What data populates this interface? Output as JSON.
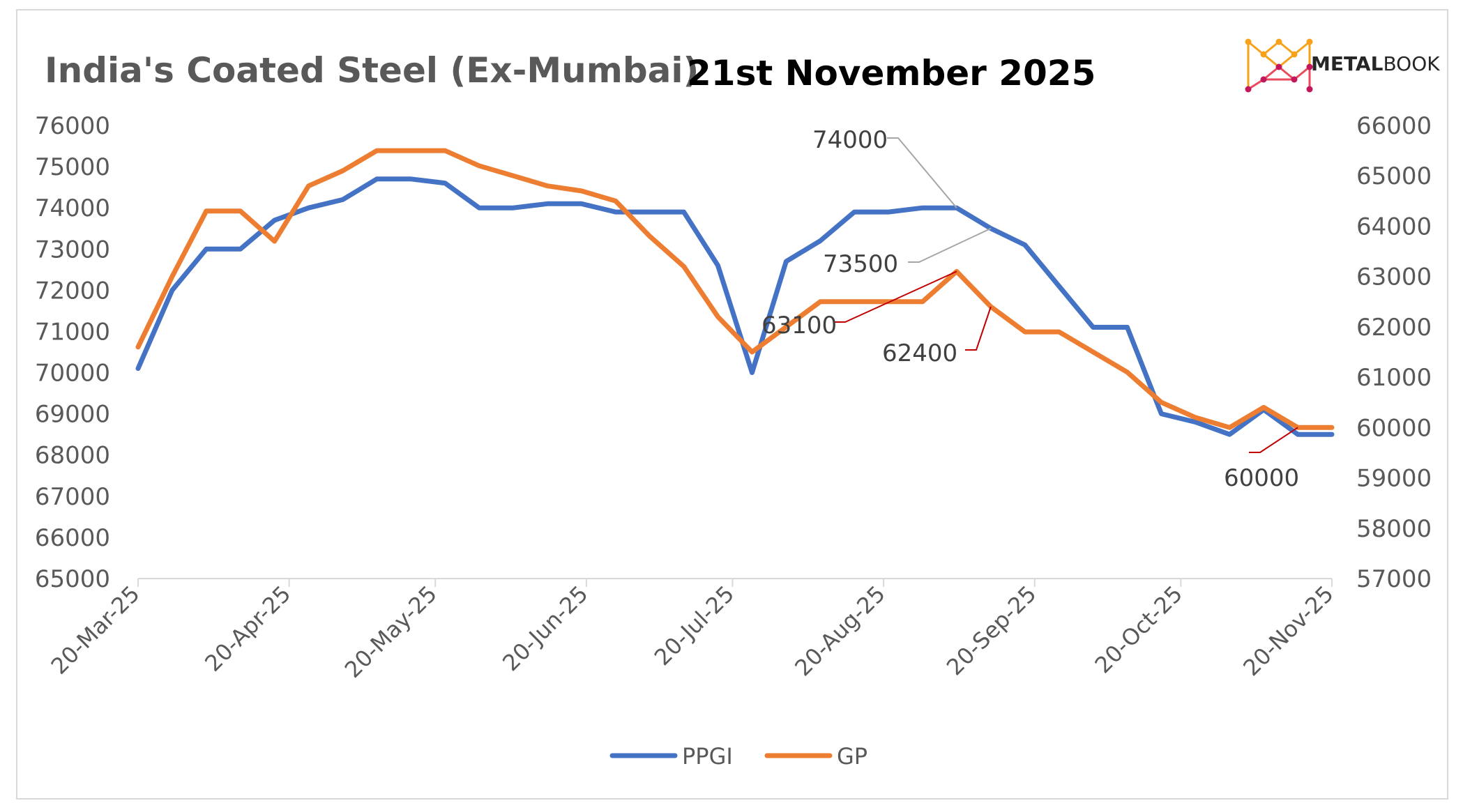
{
  "header": {
    "title": "India's Coated Steel (Ex-Mumbai)",
    "date": "21st November 2025"
  },
  "brand": {
    "name_bold": "METAL",
    "name_rest": "BOOK",
    "logo_icon": "metalbook-m-lattice-icon",
    "logo_colors": [
      "#f7a21b",
      "#e94b5c",
      "#c2185b"
    ]
  },
  "chart_data": {
    "type": "line",
    "title": "India's Coated Steel (Ex-Mumbai)",
    "subtitle": "21st November 2025",
    "xlabel": "",
    "ylabel": "",
    "x_tick_labels": [
      "20-Mar-25",
      "20-Apr-25",
      "20-May-25",
      "20-Jun-25",
      "20-Jul-25",
      "20-Aug-25",
      "20-Sep-25",
      "20-Oct-25",
      "20-Nov-25"
    ],
    "x_range": [
      "2025-03-20",
      "2025-11-20"
    ],
    "y_left": {
      "min": 65000,
      "max": 76000,
      "step": 1000,
      "series": "PPGI"
    },
    "y_right": {
      "min": 57000,
      "max": 66000,
      "step": 1000,
      "series": "GP"
    },
    "grid": false,
    "legend_position": "bottom",
    "series": [
      {
        "name": "PPGI",
        "axis": "left",
        "color": "#4472c4",
        "points": [
          [
            "2025-03-20",
            70100
          ],
          [
            "2025-03-27",
            72000
          ],
          [
            "2025-04-03",
            73000
          ],
          [
            "2025-04-10",
            73000
          ],
          [
            "2025-04-17",
            73700
          ],
          [
            "2025-04-24",
            74000
          ],
          [
            "2025-05-01",
            74200
          ],
          [
            "2025-05-08",
            74700
          ],
          [
            "2025-05-15",
            74700
          ],
          [
            "2025-05-22",
            74600
          ],
          [
            "2025-05-29",
            74000
          ],
          [
            "2025-06-05",
            74000
          ],
          [
            "2025-06-12",
            74100
          ],
          [
            "2025-06-19",
            74100
          ],
          [
            "2025-06-26",
            73900
          ],
          [
            "2025-07-03",
            73900
          ],
          [
            "2025-07-10",
            73900
          ],
          [
            "2025-07-17",
            72600
          ],
          [
            "2025-07-24",
            70000
          ],
          [
            "2025-07-31",
            72700
          ],
          [
            "2025-08-07",
            73200
          ],
          [
            "2025-08-14",
            73900
          ],
          [
            "2025-08-21",
            73900
          ],
          [
            "2025-08-28",
            74000
          ],
          [
            "2025-09-04",
            74000
          ],
          [
            "2025-09-11",
            73500
          ],
          [
            "2025-09-18",
            73100
          ],
          [
            "2025-09-25",
            72100
          ],
          [
            "2025-10-02",
            71100
          ],
          [
            "2025-10-09",
            71100
          ],
          [
            "2025-10-16",
            69000
          ],
          [
            "2025-10-23",
            68800
          ],
          [
            "2025-10-30",
            68500
          ],
          [
            "2025-11-06",
            69100
          ],
          [
            "2025-11-13",
            68500
          ],
          [
            "2025-11-20",
            68500
          ]
        ]
      },
      {
        "name": "GP",
        "axis": "right",
        "color": "#ed7d31",
        "points": [
          [
            "2025-03-20",
            61600
          ],
          [
            "2025-03-27",
            63000
          ],
          [
            "2025-04-03",
            64300
          ],
          [
            "2025-04-10",
            64300
          ],
          [
            "2025-04-17",
            63700
          ],
          [
            "2025-04-24",
            64800
          ],
          [
            "2025-05-01",
            65100
          ],
          [
            "2025-05-08",
            65500
          ],
          [
            "2025-05-15",
            65500
          ],
          [
            "2025-05-22",
            65500
          ],
          [
            "2025-05-29",
            65200
          ],
          [
            "2025-06-05",
            65000
          ],
          [
            "2025-06-12",
            64800
          ],
          [
            "2025-06-19",
            64700
          ],
          [
            "2025-06-26",
            64500
          ],
          [
            "2025-07-03",
            63800
          ],
          [
            "2025-07-10",
            63200
          ],
          [
            "2025-07-17",
            62200
          ],
          [
            "2025-07-24",
            61500
          ],
          [
            "2025-07-31",
            62000
          ],
          [
            "2025-08-07",
            62500
          ],
          [
            "2025-08-14",
            62500
          ],
          [
            "2025-08-21",
            62500
          ],
          [
            "2025-08-28",
            62500
          ],
          [
            "2025-09-04",
            63100
          ],
          [
            "2025-09-11",
            62400
          ],
          [
            "2025-09-18",
            61900
          ],
          [
            "2025-09-25",
            61900
          ],
          [
            "2025-10-02",
            61500
          ],
          [
            "2025-10-09",
            61100
          ],
          [
            "2025-10-16",
            60500
          ],
          [
            "2025-10-23",
            60200
          ],
          [
            "2025-10-30",
            60000
          ],
          [
            "2025-11-06",
            60400
          ],
          [
            "2025-11-13",
            60000
          ],
          [
            "2025-11-20",
            60000
          ]
        ]
      }
    ],
    "annotations": [
      {
        "series": "PPGI",
        "date": "2025-09-04",
        "value": 74000,
        "text": "74000",
        "leader_color": "#a6a6a6"
      },
      {
        "series": "PPGI",
        "date": "2025-09-11",
        "value": 73500,
        "text": "73500",
        "leader_color": "#a6a6a6"
      },
      {
        "series": "GP",
        "date": "2025-09-04",
        "value": 63100,
        "text": "63100",
        "leader_color": "#c00000"
      },
      {
        "series": "GP",
        "date": "2025-09-11",
        "value": 62400,
        "text": "62400",
        "leader_color": "#c00000"
      },
      {
        "series": "GP",
        "date": "2025-11-13",
        "value": 60000,
        "text": "60000",
        "leader_color": "#c00000"
      }
    ]
  }
}
